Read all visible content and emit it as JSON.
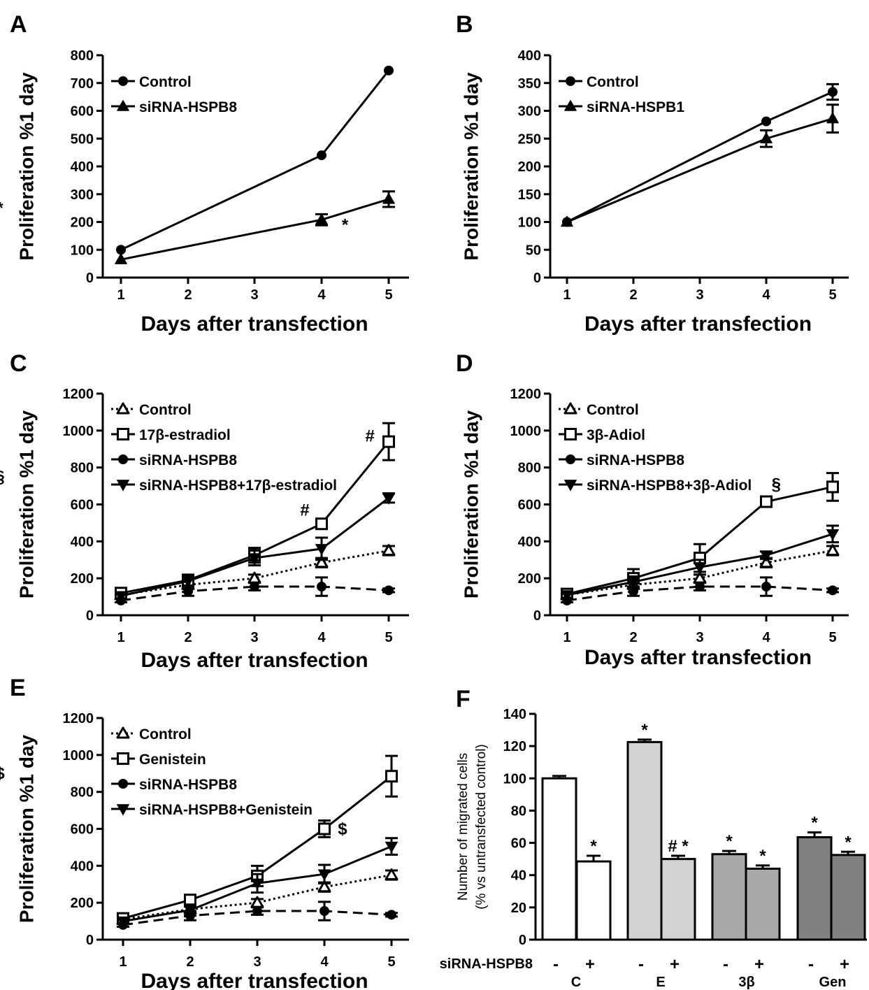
{
  "chart_data": [
    {
      "panel": "A",
      "type": "line",
      "xlabel": "Days after transfection",
      "ylabel": "Proliferation %1 day",
      "xticks": [
        1,
        2,
        3,
        4,
        5
      ],
      "ylim": [
        0,
        800
      ],
      "yticks": [
        0,
        100,
        200,
        300,
        400,
        500,
        600,
        700,
        800
      ],
      "legend_position": "top-left",
      "series": [
        {
          "name": "Control",
          "marker": "circle",
          "filled": true,
          "dash": "solid",
          "points": [
            {
              "x": 1,
              "y": 100
            },
            {
              "x": 4,
              "y": 440
            },
            {
              "x": 5,
              "y": 745
            }
          ]
        },
        {
          "name": "siRNA-HSPB8",
          "marker": "triangle",
          "filled": true,
          "dash": "solid",
          "points": [
            {
              "x": 1,
              "y": 65
            },
            {
              "x": 4,
              "y": 208,
              "err": 20
            },
            {
              "x": 5,
              "y": 282,
              "err": 28
            }
          ]
        }
      ],
      "annotations": [
        {
          "text": "*",
          "x": 4.35,
          "y": 170
        },
        {
          "text": "*",
          "x": 5.23,
          "y": 230
        }
      ]
    },
    {
      "panel": "B",
      "type": "line",
      "xlabel": "Days after transfection",
      "ylabel": "Proliferation %1 day",
      "xticks": [
        1,
        2,
        3,
        4,
        5
      ],
      "ylim": [
        0,
        400
      ],
      "yticks": [
        0,
        50,
        100,
        150,
        200,
        250,
        300,
        350,
        400
      ],
      "legend_position": "top-left",
      "series": [
        {
          "name": "Control",
          "marker": "circle",
          "filled": true,
          "dash": "solid",
          "points": [
            {
              "x": 1,
              "y": 100
            },
            {
              "x": 4,
              "y": 281
            },
            {
              "x": 5,
              "y": 334,
              "err": 14
            }
          ]
        },
        {
          "name": "siRNA-HSPB1",
          "marker": "triangle",
          "filled": true,
          "dash": "solid",
          "points": [
            {
              "x": 1,
              "y": 100
            },
            {
              "x": 4,
              "y": 250,
              "err": 15
            },
            {
              "x": 5,
              "y": 286,
              "err": 25
            }
          ]
        }
      ],
      "annotations": []
    },
    {
      "panel": "C",
      "type": "line",
      "xlabel": "Days after transfection",
      "ylabel": "Proliferation %1 day",
      "xticks": [
        1,
        2,
        3,
        4,
        5
      ],
      "ylim": [
        0,
        1200
      ],
      "yticks": [
        0,
        200,
        400,
        600,
        800,
        1000,
        1200
      ],
      "legend_position": "top-left",
      "series": [
        {
          "name": "Control",
          "marker": "triangle",
          "filled": false,
          "dash": "dotted",
          "points": [
            {
              "x": 1,
              "y": 110,
              "err": 15
            },
            {
              "x": 2,
              "y": 165,
              "err": 15
            },
            {
              "x": 3,
              "y": 200,
              "err": 20
            },
            {
              "x": 4,
              "y": 285,
              "err": 25
            },
            {
              "x": 5,
              "y": 350,
              "err": 25
            }
          ]
        },
        {
          "name": "17β-estradiol",
          "marker": "square",
          "filled": false,
          "dash": "solid",
          "points": [
            {
              "x": 1,
              "y": 120,
              "err": 15
            },
            {
              "x": 2,
              "y": 190,
              "err": 30
            },
            {
              "x": 3,
              "y": 325,
              "err": 40
            },
            {
              "x": 4,
              "y": 495,
              "err": 20
            },
            {
              "x": 5,
              "y": 940,
              "err": 100
            }
          ]
        },
        {
          "name": "siRNA-HSPB8",
          "marker": "circle",
          "filled": true,
          "dash": "dashed",
          "points": [
            {
              "x": 1,
              "y": 80,
              "err": 10
            },
            {
              "x": 2,
              "y": 130,
              "err": 25
            },
            {
              "x": 3,
              "y": 155,
              "err": 20
            },
            {
              "x": 4,
              "y": 155,
              "err": 50
            },
            {
              "x": 5,
              "y": 135,
              "err": 10
            }
          ]
        },
        {
          "name": "siRNA-HSPB8+17β-estradiol",
          "marker": "triangle-down",
          "filled": true,
          "dash": "solid",
          "points": [
            {
              "x": 1,
              "y": 105,
              "err": 15
            },
            {
              "x": 2,
              "y": 185,
              "err": 30
            },
            {
              "x": 3,
              "y": 310,
              "err": 40
            },
            {
              "x": 4,
              "y": 360,
              "err": 60
            },
            {
              "x": 5,
              "y": 635,
              "err": 25
            }
          ]
        }
      ],
      "annotations": [
        {
          "text": "#",
          "x": 3.75,
          "y": 540
        },
        {
          "text": "#",
          "x": 4.72,
          "y": 940
        }
      ]
    },
    {
      "panel": "D",
      "type": "line",
      "xlabel": "Days after transfection",
      "ylabel": "Proliferation %1 day",
      "xticks": [
        1,
        2,
        3,
        4,
        5
      ],
      "ylim": [
        0,
        1200
      ],
      "yticks": [
        0,
        200,
        400,
        600,
        800,
        1000,
        1200
      ],
      "legend_position": "top-left",
      "series": [
        {
          "name": "Control",
          "marker": "triangle",
          "filled": false,
          "dash": "dotted",
          "points": [
            {
              "x": 1,
              "y": 110,
              "err": 15
            },
            {
              "x": 2,
              "y": 165,
              "err": 15
            },
            {
              "x": 3,
              "y": 200,
              "err": 20
            },
            {
              "x": 4,
              "y": 285,
              "err": 25
            },
            {
              "x": 5,
              "y": 350,
              "err": 25
            }
          ]
        },
        {
          "name": "3β-Adiol",
          "marker": "square",
          "filled": false,
          "dash": "solid",
          "points": [
            {
              "x": 1,
              "y": 115,
              "err": 15
            },
            {
              "x": 2,
              "y": 200,
              "err": 50
            },
            {
              "x": 3,
              "y": 310,
              "err": 75
            },
            {
              "x": 4,
              "y": 615,
              "err": 10
            },
            {
              "x": 5,
              "y": 695,
              "err": 75
            }
          ]
        },
        {
          "name": "siRNA-HSPB8",
          "marker": "circle",
          "filled": true,
          "dash": "dashed",
          "points": [
            {
              "x": 1,
              "y": 80,
              "err": 10
            },
            {
              "x": 2,
              "y": 130,
              "err": 25
            },
            {
              "x": 3,
              "y": 155,
              "err": 20
            },
            {
              "x": 4,
              "y": 155,
              "err": 50
            },
            {
              "x": 5,
              "y": 135,
              "err": 10
            }
          ]
        },
        {
          "name": "siRNA-HSPB8+3β-Adiol",
          "marker": "triangle-down",
          "filled": true,
          "dash": "solid",
          "points": [
            {
              "x": 1,
              "y": 110,
              "err": 15
            },
            {
              "x": 2,
              "y": 180,
              "err": 30
            },
            {
              "x": 3,
              "y": 260,
              "err": 40
            },
            {
              "x": 4,
              "y": 325,
              "err": 20
            },
            {
              "x": 5,
              "y": 440,
              "err": 45
            }
          ]
        }
      ],
      "annotations": [
        {
          "text": "§",
          "x": 4.15,
          "y": 680
        },
        {
          "text": "§",
          "x": 5.2,
          "y": 720
        }
      ]
    },
    {
      "panel": "E",
      "type": "line",
      "xlabel": "Days after transfection",
      "ylabel": "Proliferation %1 day",
      "xticks": [
        1,
        2,
        3,
        4,
        5
      ],
      "ylim": [
        0,
        1200
      ],
      "yticks": [
        0,
        200,
        400,
        600,
        800,
        1000,
        1200
      ],
      "legend_position": "top-left",
      "series": [
        {
          "name": "Control",
          "marker": "triangle",
          "filled": false,
          "dash": "dotted",
          "points": [
            {
              "x": 1,
              "y": 110,
              "err": 15
            },
            {
              "x": 2,
              "y": 165,
              "err": 15
            },
            {
              "x": 3,
              "y": 200,
              "err": 20
            },
            {
              "x": 4,
              "y": 285,
              "err": 25
            },
            {
              "x": 5,
              "y": 350,
              "err": 25
            }
          ]
        },
        {
          "name": "Genistein",
          "marker": "square",
          "filled": false,
          "dash": "solid",
          "points": [
            {
              "x": 1,
              "y": 115,
              "err": 15
            },
            {
              "x": 2,
              "y": 215,
              "err": 25
            },
            {
              "x": 3,
              "y": 345,
              "err": 55
            },
            {
              "x": 4,
              "y": 600,
              "err": 45
            },
            {
              "x": 5,
              "y": 885,
              "err": 110
            }
          ]
        },
        {
          "name": "siRNA-HSPB8",
          "marker": "circle",
          "filled": true,
          "dash": "dashed",
          "points": [
            {
              "x": 1,
              "y": 80,
              "err": 10
            },
            {
              "x": 2,
              "y": 130,
              "err": 25
            },
            {
              "x": 3,
              "y": 155,
              "err": 20
            },
            {
              "x": 4,
              "y": 155,
              "err": 50
            },
            {
              "x": 5,
              "y": 135,
              "err": 10
            }
          ]
        },
        {
          "name": "siRNA-HSPB8+Genistein",
          "marker": "triangle-down",
          "filled": true,
          "dash": "solid",
          "points": [
            {
              "x": 1,
              "y": 100,
              "err": 15
            },
            {
              "x": 2,
              "y": 160,
              "err": 30
            },
            {
              "x": 3,
              "y": 305,
              "err": 50
            },
            {
              "x": 4,
              "y": 355,
              "err": 50
            },
            {
              "x": 5,
              "y": 505,
              "err": 45
            }
          ]
        }
      ],
      "annotations": [
        {
          "text": "$",
          "x": 4.27,
          "y": 570
        },
        {
          "text": "$",
          "x": 5.22,
          "y": 870
        }
      ]
    },
    {
      "panel": "F",
      "type": "bar",
      "ylabel_line1": "Number of migrated cells",
      "ylabel_line2": "(% vs untransfected control)",
      "ylim": [
        0,
        140
      ],
      "yticks": [
        0,
        20,
        40,
        60,
        80,
        100,
        120,
        140
      ],
      "row_label": "siRNA-HSPB8",
      "groups": [
        "C",
        "E",
        "3β",
        "Gen"
      ],
      "bars": [
        {
          "group": "C",
          "sirna": "-",
          "value": 100,
          "err": 1.5,
          "color": "#ffffff",
          "label": ""
        },
        {
          "group": "C",
          "sirna": "+",
          "value": 48.5,
          "err": 3.5,
          "color": "#ffffff",
          "label": "*"
        },
        {
          "group": "E",
          "sirna": "-",
          "value": 122.5,
          "err": 1.5,
          "color": "#d3d3d3",
          "label": "*"
        },
        {
          "group": "E",
          "sirna": "+",
          "value": 50,
          "err": 2,
          "color": "#d3d3d3",
          "label": "# *"
        },
        {
          "group": "3β",
          "sirna": "-",
          "value": 53,
          "err": 2,
          "color": "#a9a9a9",
          "label": "*"
        },
        {
          "group": "3β",
          "sirna": "+",
          "value": 44,
          "err": 2,
          "color": "#a9a9a9",
          "label": "*"
        },
        {
          "group": "Gen",
          "sirna": "-",
          "value": 63.5,
          "err": 3,
          "color": "#808080",
          "label": "*"
        },
        {
          "group": "Gen",
          "sirna": "+",
          "value": 52.5,
          "err": 2,
          "color": "#808080",
          "label": "*"
        }
      ]
    }
  ]
}
